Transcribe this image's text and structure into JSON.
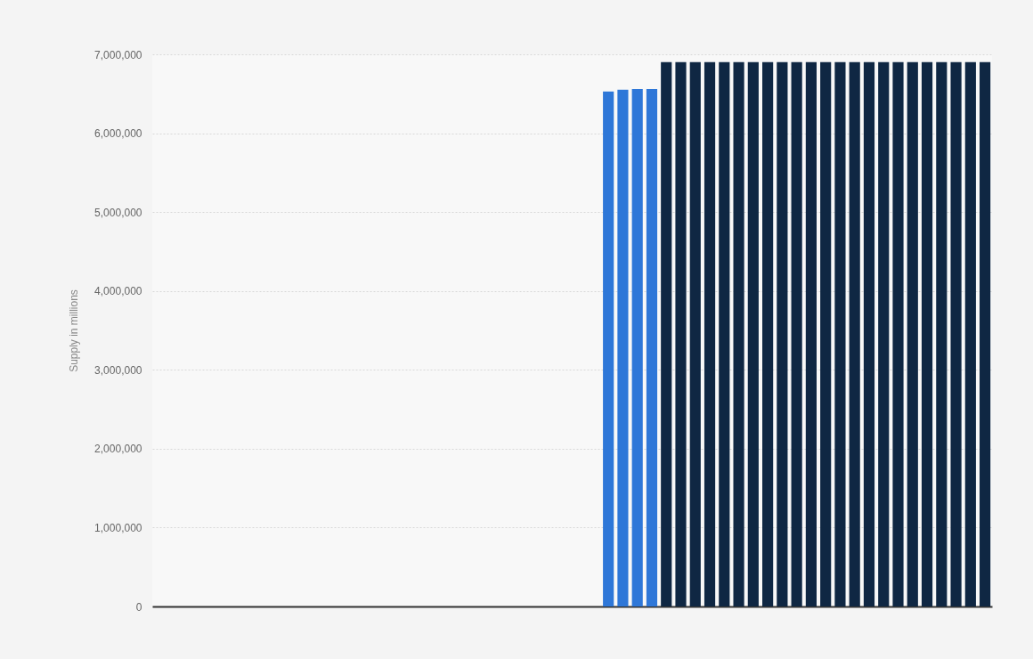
{
  "chart_data": {
    "type": "bar",
    "ylabel": "Supply in millions",
    "categories": [
      null,
      null,
      null,
      null,
      null,
      null,
      null,
      null,
      null,
      null,
      null,
      null,
      null,
      null,
      null,
      null,
      null,
      null,
      null,
      null,
      null,
      null,
      null,
      null,
      null,
      null,
      null,
      null,
      null,
      null,
      null,
      null,
      null,
      null,
      null,
      null,
      null,
      null,
      null,
      null,
      null,
      null,
      null,
      null,
      null,
      null,
      null,
      null,
      null,
      null,
      null,
      null,
      null,
      null,
      null,
      null,
      null,
      null
    ],
    "values": [
      null,
      null,
      null,
      null,
      null,
      null,
      null,
      null,
      null,
      null,
      null,
      null,
      null,
      null,
      null,
      null,
      null,
      null,
      null,
      null,
      null,
      null,
      null,
      null,
      null,
      null,
      null,
      null,
      null,
      null,
      null,
      6530000,
      6550000,
      6560000,
      6560000,
      6900000,
      6900000,
      6900000,
      6900000,
      6900000,
      6900000,
      6900000,
      6900000,
      6900000,
      6900000,
      6900000,
      6900000,
      6900000,
      6900000,
      6900000,
      6900000,
      6900000,
      6900000,
      6900000,
      6900000,
      6900000,
      6900000,
      6900000
    ],
    "colors": [
      null,
      null,
      null,
      null,
      null,
      null,
      null,
      null,
      null,
      null,
      null,
      null,
      null,
      null,
      null,
      null,
      null,
      null,
      null,
      null,
      null,
      null,
      null,
      null,
      null,
      null,
      null,
      null,
      null,
      null,
      null,
      "#2e77d8",
      "#2e77d8",
      "#2e77d8",
      "#2e77d8",
      "#0f2743",
      "#0f2743",
      "#0f2743",
      "#0f2743",
      "#0f2743",
      "#0f2743",
      "#0f2743",
      "#0f2743",
      "#0f2743",
      "#0f2743",
      "#0f2743",
      "#0f2743",
      "#0f2743",
      "#0f2743",
      "#0f2743",
      "#0f2743",
      "#0f2743",
      "#0f2743",
      "#0f2743",
      "#0f2743",
      "#0f2743",
      "#0f2743",
      "#0f2743"
    ],
    "ylim": [
      0,
      7000000
    ],
    "yticks": [
      0,
      {
        "value": 1000000,
        "label": "1,000,000"
      },
      {
        "value": 2000000,
        "label": "2,000,000"
      },
      {
        "value": 3000000,
        "label": "3,000,000"
      },
      {
        "value": 4000000,
        "label": "4,000,000"
      },
      {
        "value": 5000000,
        "label": "5,000,000"
      },
      {
        "value": 6000000,
        "label": "6,000,000"
      },
      {
        "value": 7000000,
        "label": "7,000,000"
      }
    ],
    "grid": "y",
    "tick_labels": "y"
  }
}
